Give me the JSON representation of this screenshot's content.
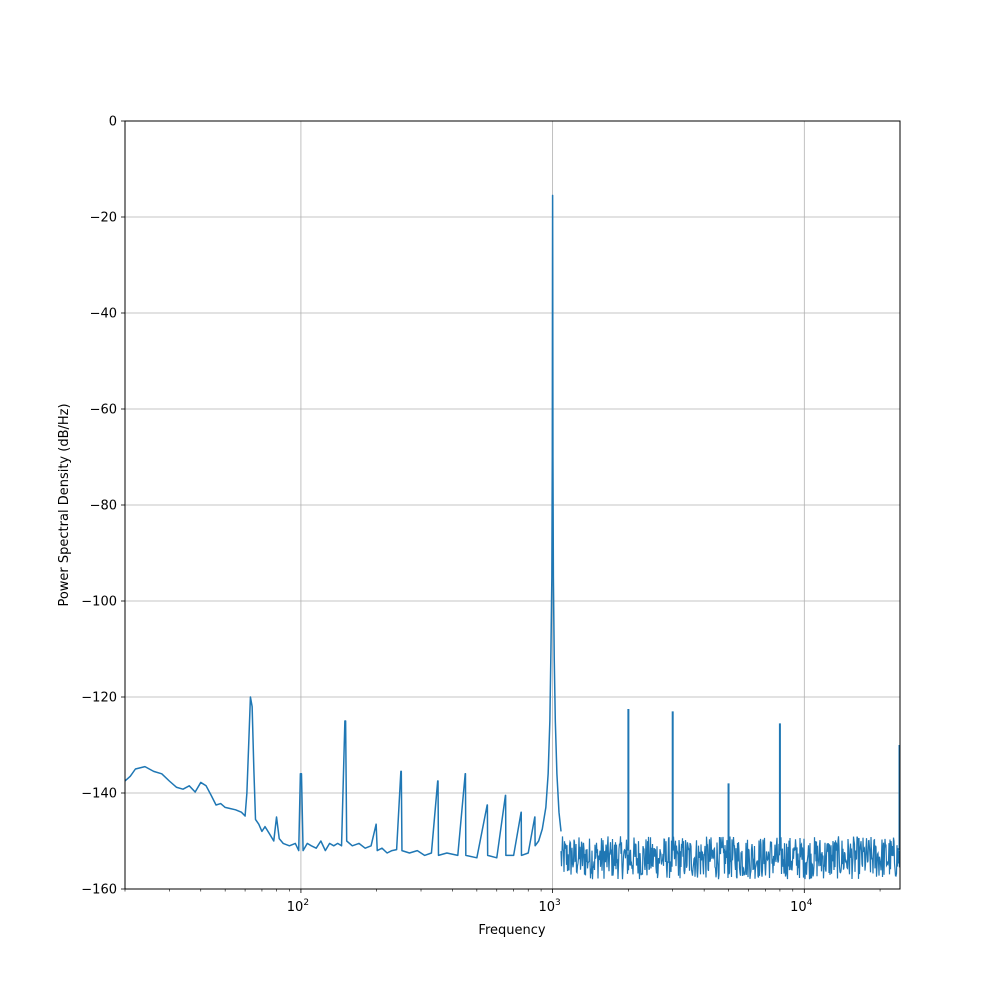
{
  "chart_data": {
    "type": "line",
    "title": "",
    "xlabel": "Frequency",
    "ylabel": "Power Spectral Density (dB/Hz)",
    "xscale": "log",
    "xlim": [
      20,
      24000
    ],
    "ylim": [
      -160,
      0
    ],
    "grid": true,
    "legend": "none",
    "xticks": [
      {
        "value": 100,
        "base": "10",
        "exp": "2"
      },
      {
        "value": 1000,
        "base": "10",
        "exp": "3"
      },
      {
        "value": 10000,
        "base": "10",
        "exp": "4"
      }
    ],
    "yticks": [
      {
        "value": 0,
        "label": "0"
      },
      {
        "value": -20,
        "label": "−20"
      },
      {
        "value": -40,
        "label": "−40"
      },
      {
        "value": -60,
        "label": "−60"
      },
      {
        "value": -80,
        "label": "−80"
      },
      {
        "value": -100,
        "label": "−100"
      },
      {
        "value": -120,
        "label": "−120"
      },
      {
        "value": -140,
        "label": "−140"
      },
      {
        "value": -160,
        "label": "−160"
      }
    ],
    "series": [
      {
        "color": "#1f77b4",
        "noise_band": {
          "from_hz": 1080,
          "to_hz": 24000,
          "low_db": -158,
          "high_db": -149
        },
        "points": [
          [
            20,
            -137.5
          ],
          [
            21,
            -136.5
          ],
          [
            22,
            -135
          ],
          [
            24,
            -134.5
          ],
          [
            26,
            -135.5
          ],
          [
            28,
            -136
          ],
          [
            30,
            -137.5
          ],
          [
            32,
            -138.8
          ],
          [
            34,
            -139.2
          ],
          [
            36,
            -138.5
          ],
          [
            38,
            -139.8
          ],
          [
            40,
            -137.8
          ],
          [
            42,
            -138.5
          ],
          [
            44,
            -140.5
          ],
          [
            46,
            -142.5
          ],
          [
            48,
            -142.2
          ],
          [
            50,
            -143
          ],
          [
            52,
            -143.2
          ],
          [
            55,
            -143.5
          ],
          [
            58,
            -144
          ],
          [
            60,
            -144.8
          ],
          [
            61,
            -140
          ],
          [
            62,
            -130
          ],
          [
            63,
            -120
          ],
          [
            64,
            -122
          ],
          [
            65,
            -135
          ],
          [
            66,
            -145.5
          ],
          [
            68,
            -146.5
          ],
          [
            70,
            -148
          ],
          [
            72,
            -147
          ],
          [
            75,
            -148.5
          ],
          [
            78,
            -150
          ],
          [
            80,
            -145
          ],
          [
            82,
            -149.5
          ],
          [
            85,
            -150.5
          ],
          [
            90,
            -151
          ],
          [
            95,
            -150.5
          ],
          [
            98,
            -152
          ],
          [
            99.5,
            -136
          ],
          [
            100.5,
            -136
          ],
          [
            102,
            -152
          ],
          [
            106,
            -150.5
          ],
          [
            110,
            -151
          ],
          [
            115,
            -151.5
          ],
          [
            120,
            -150
          ],
          [
            125,
            -152
          ],
          [
            130,
            -150.5
          ],
          [
            135,
            -151
          ],
          [
            140,
            -150.5
          ],
          [
            145,
            -151
          ],
          [
            149.5,
            -125
          ],
          [
            150.5,
            -125
          ],
          [
            152,
            -150
          ],
          [
            160,
            -151
          ],
          [
            170,
            -150.5
          ],
          [
            180,
            -151.5
          ],
          [
            190,
            -151
          ],
          [
            199,
            -146.5
          ],
          [
            201,
            -152
          ],
          [
            210,
            -151.5
          ],
          [
            220,
            -152.5
          ],
          [
            230,
            -152
          ],
          [
            240,
            -151.8
          ],
          [
            249.5,
            -135.5
          ],
          [
            250.5,
            -135.5
          ],
          [
            252,
            -152
          ],
          [
            270,
            -152.5
          ],
          [
            290,
            -152
          ],
          [
            310,
            -153
          ],
          [
            330,
            -152.5
          ],
          [
            349.5,
            -137.5
          ],
          [
            350.5,
            -137.5
          ],
          [
            352,
            -153
          ],
          [
            380,
            -152.5
          ],
          [
            420,
            -153
          ],
          [
            449.5,
            -136
          ],
          [
            450.5,
            -136
          ],
          [
            452,
            -153
          ],
          [
            500,
            -153.5
          ],
          [
            549.5,
            -142.5
          ],
          [
            550.5,
            -142.5
          ],
          [
            552,
            -153
          ],
          [
            600,
            -153.5
          ],
          [
            649.5,
            -140.5
          ],
          [
            650.5,
            -140.5
          ],
          [
            652,
            -153
          ],
          [
            700,
            -153
          ],
          [
            749.5,
            -144
          ],
          [
            750.5,
            -144
          ],
          [
            752,
            -153
          ],
          [
            800,
            -152.5
          ],
          [
            849.5,
            -145
          ],
          [
            850.5,
            -145
          ],
          [
            852,
            -151
          ],
          [
            880,
            -150
          ],
          [
            910,
            -147.5
          ],
          [
            940,
            -143
          ],
          [
            960,
            -136
          ],
          [
            975,
            -125
          ],
          [
            985,
            -110
          ],
          [
            993,
            -95
          ],
          [
            997,
            -70
          ],
          [
            999,
            -30
          ],
          [
            1000,
            -15.5
          ],
          [
            1001,
            -30
          ],
          [
            1003,
            -70
          ],
          [
            1007,
            -95
          ],
          [
            1015,
            -112
          ],
          [
            1025,
            -125
          ],
          [
            1040,
            -136
          ],
          [
            1060,
            -144
          ],
          [
            1080,
            -148
          ]
        ],
        "spikes": [
          {
            "hz": 2000,
            "db": -122.5
          },
          {
            "hz": 3000,
            "db": -123
          },
          {
            "hz": 5000,
            "db": -138
          },
          {
            "hz": 8000,
            "db": -125.5
          },
          {
            "hz": 24000,
            "db": -130
          }
        ]
      }
    ]
  }
}
